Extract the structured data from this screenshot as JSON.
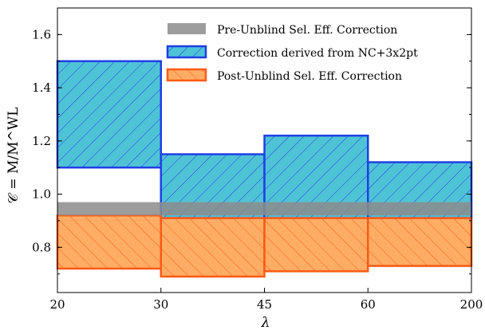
{
  "chart_data": {
    "type": "area",
    "x_ticks": [
      20,
      30,
      45,
      60,
      200
    ],
    "y_ticks": [
      0.8,
      1.0,
      1.2,
      1.4,
      1.6
    ],
    "xlim": [
      0,
      4
    ],
    "ylim": [
      0.63,
      1.7
    ],
    "xlabel": "λ",
    "ylabel": "𝒞 = M/M^WL",
    "legend_position": "top-right",
    "grid": false,
    "colors": {
      "pre": "#8c8c8c",
      "nc": "#4fc3d6",
      "nc_edge": "#1f3fe6",
      "post": "#ff9f4a",
      "post_edge": "#ff5a14"
    },
    "series": [
      {
        "name": "Pre-Unblind Sel. Eff. Correction",
        "style": "solid-gray-band",
        "bins": [
          {
            "x": [
              20,
              200
            ],
            "y": [
              0.92,
              0.97
            ]
          }
        ]
      },
      {
        "name": "Correction derived from NC+3x2pt",
        "style": "cyan-hatched",
        "bins": [
          {
            "x": [
              20,
              30
            ],
            "y": [
              1.1,
              1.5
            ]
          },
          {
            "x": [
              30,
              45
            ],
            "y": [
              0.91,
              1.15
            ]
          },
          {
            "x": [
              45,
              60
            ],
            "y": [
              0.91,
              1.22
            ]
          },
          {
            "x": [
              60,
              200
            ],
            "y": [
              0.91,
              1.12
            ]
          }
        ]
      },
      {
        "name": "Post-Unblind Sel. Eff. Correction",
        "style": "orange-hatched",
        "bins": [
          {
            "x": [
              20,
              30
            ],
            "y": [
              0.72,
              0.92
            ]
          },
          {
            "x": [
              30,
              45
            ],
            "y": [
              0.69,
              0.91
            ]
          },
          {
            "x": [
              45,
              60
            ],
            "y": [
              0.71,
              0.91
            ]
          },
          {
            "x": [
              60,
              200
            ],
            "y": [
              0.73,
              0.91
            ]
          }
        ]
      }
    ]
  }
}
